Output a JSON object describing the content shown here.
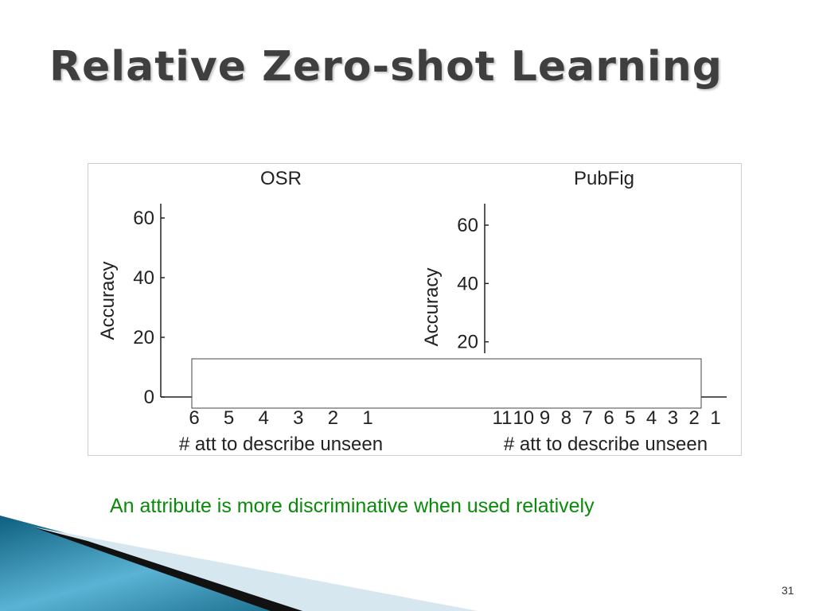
{
  "slide": {
    "title": "Relative Zero-shot Learning",
    "caption": "An attribute is more discriminative when used relatively",
    "page_number": "31"
  },
  "colors": {
    "caption": "#0a8a0a",
    "title": "#3f3f3f",
    "deco_dark": "#0e5f7f",
    "deco_light": "#5ab3d4"
  },
  "chart_data": [
    {
      "type": "line",
      "title": "OSR",
      "xlabel": "# att to describe unseen",
      "ylabel": "Accuracy",
      "x_ticks": [
        "6",
        "5",
        "4",
        "3",
        "2",
        "1"
      ],
      "y_ticks": [
        0,
        20,
        40,
        60
      ],
      "ylim": [
        0,
        60
      ],
      "series": []
    },
    {
      "type": "line",
      "title": "PubFig",
      "xlabel": "# att to describe unseen",
      "ylabel": "Accuracy",
      "x_ticks": [
        "11",
        "10",
        "9",
        "8",
        "7",
        "6",
        "5",
        "4",
        "3",
        "2",
        "1"
      ],
      "y_ticks": [
        20,
        40,
        60
      ],
      "ylim": [
        0,
        60
      ],
      "series": []
    }
  ]
}
